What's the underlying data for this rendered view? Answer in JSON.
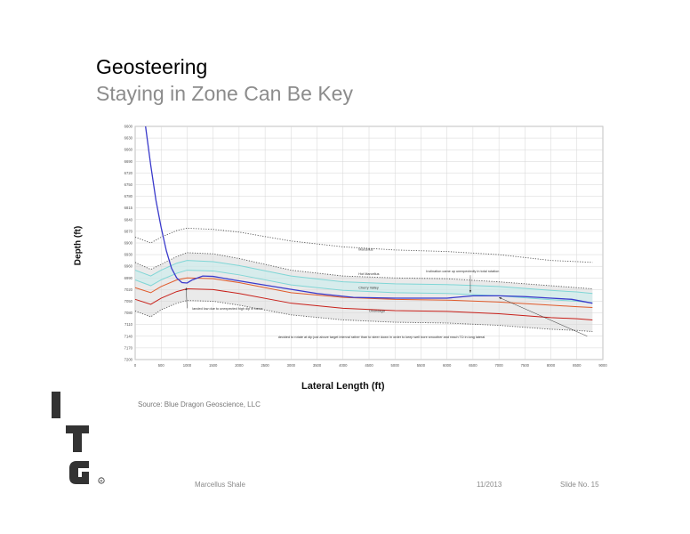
{
  "slide": {
    "title": "Geosteering",
    "subtitle": "Staying in Zone Can Be Key",
    "source": "Source: Blue Dragon Geoscience, LLC",
    "logo_text": "ITG",
    "footer": {
      "left": "Marcellus Shale",
      "date": "11/2013",
      "slide_no": "Slide No. 15"
    }
  },
  "colors": {
    "wellbore": "#3a3acb",
    "hot_marcellus": "#7a2a8a",
    "target_band": "#e05a2a",
    "target_base": "#c8201a",
    "cherry_valley": "#7fd6d6",
    "envelope": "#555555",
    "band_fill": "#d9d9d9"
  },
  "chart_data": {
    "type": "line",
    "xlabel": "Lateral Length (ft)",
    "ylabel": "Depth (ft)",
    "xlim": [
      0,
      9000
    ],
    "ylim": [
      7200,
      6600
    ],
    "y_inverted": true,
    "grid": true,
    "x_ticks": [
      "0",
      "500",
      "1000",
      "1500",
      "2000",
      "2500",
      "3000",
      "3500",
      "4000",
      "4500",
      "5000",
      "5500",
      "6000",
      "6500",
      "7000",
      "7500",
      "8000",
      "8500",
      "9000"
    ],
    "y_ticks": [
      "6600",
      "6630",
      "6660",
      "6690",
      "6720",
      "6750",
      "6780",
      "6815",
      "6840",
      "6870",
      "6900",
      "6930",
      "6960",
      "6990",
      "7020",
      "7050",
      "7080",
      "7110",
      "7140",
      "7170",
      "7200"
    ],
    "series": [
      {
        "name": "Marcellus",
        "key": "marcellus",
        "style": "dotted",
        "color": "#555555",
        "x": [
          0,
          300,
          500,
          800,
          1000,
          1500,
          2000,
          3000,
          4000,
          5000,
          6000,
          7000,
          8000,
          8500,
          8800
        ],
        "y": [
          6885,
          6900,
          6885,
          6868,
          6862,
          6865,
          6872,
          6895,
          6910,
          6918,
          6922,
          6930,
          6945,
          6948,
          6950
        ]
      },
      {
        "name": "",
        "key": "upper_envelope",
        "style": "dotted",
        "color": "#555555",
        "x": [
          0,
          300,
          500,
          800,
          1000,
          1500,
          2000,
          3000,
          4000,
          5000,
          6000,
          7000,
          8000,
          8500,
          8800
        ],
        "y": [
          6950,
          6968,
          6955,
          6935,
          6925,
          6928,
          6940,
          6970,
          6985,
          6990,
          6992,
          7000,
          7010,
          7015,
          7018
        ]
      },
      {
        "name": "Hot Marcellus",
        "key": "hot_marcellus_top",
        "style": "solid",
        "color": "#7fd6d6",
        "x": [
          0,
          300,
          500,
          800,
          1000,
          1500,
          2000,
          3000,
          4000,
          5000,
          6000,
          7000,
          8000,
          8500,
          8800
        ],
        "y": [
          6970,
          6985,
          6970,
          6952,
          6945,
          6948,
          6958,
          6985,
          7000,
          7005,
          7007,
          7012,
          7022,
          7026,
          7030
        ]
      },
      {
        "name": "Cherry Valley",
        "key": "cherry_valley",
        "style": "solid",
        "color": "#7fd6d6",
        "x": [
          0,
          300,
          500,
          800,
          1000,
          1500,
          2000,
          3000,
          4000,
          5000,
          6000,
          7000,
          8000,
          8500,
          8800
        ],
        "y": [
          6995,
          7010,
          6995,
          6978,
          6970,
          6972,
          6982,
          7008,
          7022,
          7028,
          7030,
          7036,
          7046,
          7050,
          7054
        ]
      },
      {
        "name": "",
        "key": "target_top",
        "style": "solid",
        "color": "#e05a2a",
        "x": [
          0,
          300,
          500,
          800,
          1000,
          1500,
          2000,
          3000,
          4000,
          5000,
          6000,
          7000,
          8000,
          8500,
          8800
        ],
        "y": [
          7015,
          7028,
          7012,
          6995,
          6990,
          6992,
          7002,
          7028,
          7040,
          7045,
          7047,
          7052,
          7060,
          7064,
          7066
        ]
      },
      {
        "name": "Onondaga",
        "key": "target_base",
        "style": "solid",
        "color": "#c8201a",
        "x": [
          0,
          300,
          500,
          800,
          1000,
          1500,
          2000,
          3000,
          4000,
          5000,
          6000,
          7000,
          8000,
          8500,
          8800
        ],
        "y": [
          7045,
          7058,
          7042,
          7025,
          7018,
          7020,
          7030,
          7055,
          7068,
          7074,
          7076,
          7082,
          7092,
          7095,
          7098
        ]
      },
      {
        "name": "",
        "key": "lower_envelope",
        "style": "dotted",
        "color": "#555555",
        "x": [
          0,
          300,
          500,
          800,
          1000,
          1500,
          2000,
          3000,
          4000,
          5000,
          6000,
          7000,
          8000,
          8500,
          8800
        ],
        "y": [
          7075,
          7090,
          7072,
          7055,
          7048,
          7050,
          7060,
          7085,
          7098,
          7104,
          7106,
          7112,
          7122,
          7125,
          7128
        ]
      },
      {
        "name": "",
        "key": "wellbore",
        "style": "solid",
        "color": "#3a3acb",
        "x": [
          200,
          300,
          400,
          500,
          600,
          700,
          800,
          900,
          1000,
          1100,
          1300,
          1500,
          1800,
          2200,
          2800,
          3500,
          4200,
          5000,
          6000,
          6500,
          7000,
          7500,
          8000,
          8400,
          8800
        ],
        "y": [
          6600,
          6700,
          6790,
          6860,
          6920,
          6965,
          6990,
          7002,
          7003,
          6995,
          6985,
          6986,
          6993,
          7002,
          7015,
          7030,
          7040,
          7042,
          7042,
          7036,
          7036,
          7038,
          7042,
          7045,
          7055
        ]
      }
    ],
    "annotations": [
      {
        "text": "Marcellus",
        "x": 4300,
        "y": 6920
      },
      {
        "text": "Hot Marcellus",
        "x": 4300,
        "y": 6983
      },
      {
        "text": "Inclination came up unexpectedly in total rotation",
        "x": 5600,
        "y": 6976
      },
      {
        "text": "Cherry Valley",
        "x": 4300,
        "y": 7018
      },
      {
        "text": "Onondaga",
        "x": 4500,
        "y": 7078
      },
      {
        "text": "landed low due to unexpected high dip in curve",
        "x": 1100,
        "y": 7072
      },
      {
        "text": "decided to rotate at dip just above target interval rather than to steer down in order to keep well bore smoother and reach TD in long lateral",
        "x": 2750,
        "y": 7145
      }
    ],
    "arrows": [
      {
        "from": [
          1000,
          7068
        ],
        "to": [
          980,
          7015
        ]
      },
      {
        "from": [
          6450,
          6983
        ],
        "to": [
          6450,
          7028
        ]
      },
      {
        "from": [
          8700,
          7140
        ],
        "to": [
          7000,
          7040
        ]
      }
    ]
  }
}
